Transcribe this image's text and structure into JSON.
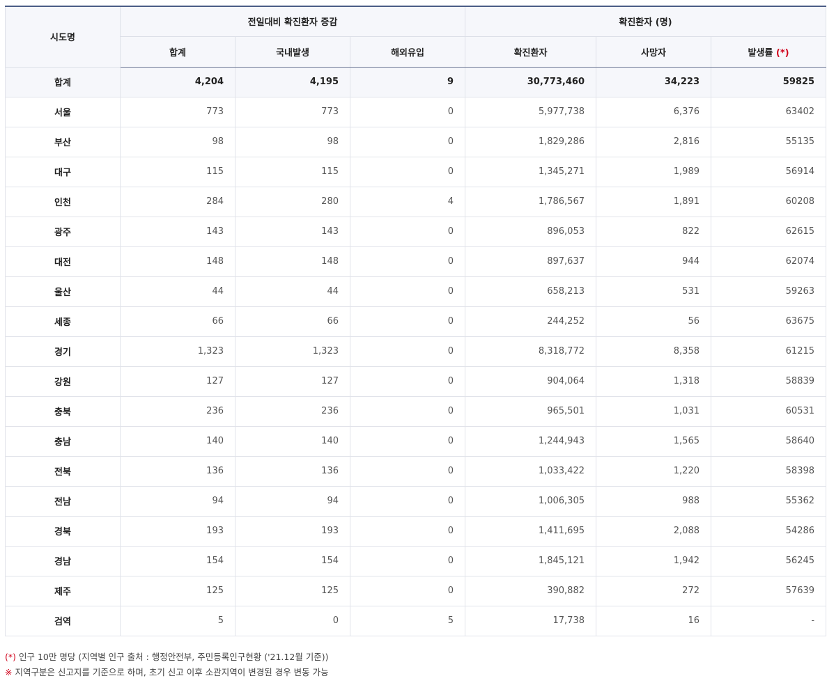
{
  "header": {
    "region_col": "시도명",
    "group_daily": "전일대비 확진환자 증감",
    "group_cumulative": "확진환자 (명)",
    "daily_total": "합계",
    "daily_domestic": "국내발생",
    "daily_overseas": "해외유입",
    "cum_confirmed": "확진환자",
    "cum_deaths": "사망자",
    "cum_rate": "발생률",
    "cum_rate_mark": "(*)"
  },
  "rows": [
    {
      "region": "합계",
      "total": "4,204",
      "domestic": "4,195",
      "overseas": "9",
      "confirmed": "30,773,460",
      "deaths": "34,223",
      "rate": "59825"
    },
    {
      "region": "서울",
      "total": "773",
      "domestic": "773",
      "overseas": "0",
      "confirmed": "5,977,738",
      "deaths": "6,376",
      "rate": "63402"
    },
    {
      "region": "부산",
      "total": "98",
      "domestic": "98",
      "overseas": "0",
      "confirmed": "1,829,286",
      "deaths": "2,816",
      "rate": "55135"
    },
    {
      "region": "대구",
      "total": "115",
      "domestic": "115",
      "overseas": "0",
      "confirmed": "1,345,271",
      "deaths": "1,989",
      "rate": "56914"
    },
    {
      "region": "인천",
      "total": "284",
      "domestic": "280",
      "overseas": "4",
      "confirmed": "1,786,567",
      "deaths": "1,891",
      "rate": "60208"
    },
    {
      "region": "광주",
      "total": "143",
      "domestic": "143",
      "overseas": "0",
      "confirmed": "896,053",
      "deaths": "822",
      "rate": "62615"
    },
    {
      "region": "대전",
      "total": "148",
      "domestic": "148",
      "overseas": "0",
      "confirmed": "897,637",
      "deaths": "944",
      "rate": "62074"
    },
    {
      "region": "울산",
      "total": "44",
      "domestic": "44",
      "overseas": "0",
      "confirmed": "658,213",
      "deaths": "531",
      "rate": "59263"
    },
    {
      "region": "세종",
      "total": "66",
      "domestic": "66",
      "overseas": "0",
      "confirmed": "244,252",
      "deaths": "56",
      "rate": "63675"
    },
    {
      "region": "경기",
      "total": "1,323",
      "domestic": "1,323",
      "overseas": "0",
      "confirmed": "8,318,772",
      "deaths": "8,358",
      "rate": "61215"
    },
    {
      "region": "강원",
      "total": "127",
      "domestic": "127",
      "overseas": "0",
      "confirmed": "904,064",
      "deaths": "1,318",
      "rate": "58839"
    },
    {
      "region": "충북",
      "total": "236",
      "domestic": "236",
      "overseas": "0",
      "confirmed": "965,501",
      "deaths": "1,031",
      "rate": "60531"
    },
    {
      "region": "충남",
      "total": "140",
      "domestic": "140",
      "overseas": "0",
      "confirmed": "1,244,943",
      "deaths": "1,565",
      "rate": "58640"
    },
    {
      "region": "전북",
      "total": "136",
      "domestic": "136",
      "overseas": "0",
      "confirmed": "1,033,422",
      "deaths": "1,220",
      "rate": "58398"
    },
    {
      "region": "전남",
      "total": "94",
      "domestic": "94",
      "overseas": "0",
      "confirmed": "1,006,305",
      "deaths": "988",
      "rate": "55362"
    },
    {
      "region": "경북",
      "total": "193",
      "domestic": "193",
      "overseas": "0",
      "confirmed": "1,411,695",
      "deaths": "2,088",
      "rate": "54286"
    },
    {
      "region": "경남",
      "total": "154",
      "domestic": "154",
      "overseas": "0",
      "confirmed": "1,845,121",
      "deaths": "1,942",
      "rate": "56245"
    },
    {
      "region": "제주",
      "total": "125",
      "domestic": "125",
      "overseas": "0",
      "confirmed": "390,882",
      "deaths": "272",
      "rate": "57639"
    },
    {
      "region": "검역",
      "total": "5",
      "domestic": "0",
      "overseas": "5",
      "confirmed": "17,738",
      "deaths": "16",
      "rate": "-"
    }
  ],
  "notes": {
    "note1_mark": "(*)",
    "note1_text": " 인구 10만 명당 (지역별 인구 출처 : 행정안전부, 주민등록인구현황 ('21.12월 기준))",
    "note2_mark": "※",
    "note2_text": " 지역구분은 신고지를 기준으로 하며, 초기 신고 이후 소관지역이 변경된 경우 변동 가능"
  },
  "colors": {
    "header_bg": "#f6f7fb",
    "header_top_border": "#4b5d86",
    "mark_red": "#d0021b"
  }
}
